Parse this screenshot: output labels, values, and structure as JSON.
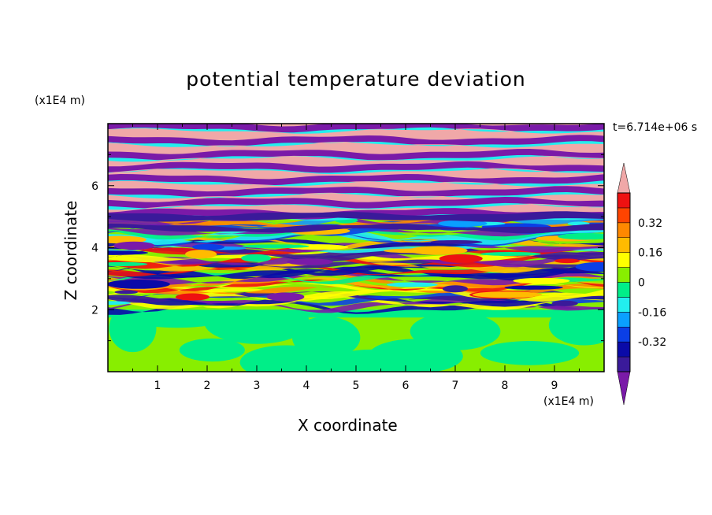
{
  "chart_data": {
    "type": "heatmap",
    "title": "potential temperature deviation",
    "xlabel": "X coordinate",
    "ylabel": "Z coordinate",
    "x_unit": "(x1E4 m)",
    "y_unit": "(x1E4 m)",
    "time_label": "t=6.714e+06 s",
    "xlim": [
      0,
      10
    ],
    "ylim": [
      0,
      8
    ],
    "x_ticks": [
      "1",
      "2",
      "3",
      "4",
      "5",
      "6",
      "7",
      "8",
      "9"
    ],
    "y_ticks": [
      "2",
      "4",
      "6"
    ],
    "colorbar": {
      "levels": [
        -0.48,
        -0.4,
        -0.32,
        -0.24,
        -0.16,
        -0.08,
        0,
        0.08,
        0.16,
        0.24,
        0.32,
        0.4,
        0.48
      ],
      "labels": [
        "0.32",
        "0.16",
        "0",
        "-0.16",
        "-0.32"
      ],
      "colors": [
        "#7a1aa8",
        "#3a1a9a",
        "#0a0aa8",
        "#0b3fe6",
        "#0aa0ff",
        "#22eeee",
        "#00ee88",
        "#88ee00",
        "#ffff00",
        "#ffbb00",
        "#ff8800",
        "#ff4400",
        "#ee1111",
        "#f0a8a8"
      ]
    },
    "regions": [
      {
        "z_range": [
          0,
          2
        ],
        "description": "near-uniform field, values about 0 to 0.08",
        "dominant_colors": [
          "#88ee00",
          "#00ee88"
        ]
      },
      {
        "z_range": [
          2,
          5
        ],
        "description": "banded mixing layer with values from about -0.32 to 0.32",
        "dominant_colors": [
          "#88ee00",
          "#ffff00",
          "#ff4400",
          "#22eeee",
          "#0a0aa8",
          "#3a1a9a"
        ]
      },
      {
        "z_range": [
          5,
          8
        ],
        "description": "alternating horizontal bands of extreme values beyond ±0.48",
        "dominant_colors": [
          "#f0a8a8",
          "#7a1aa8"
        ]
      }
    ]
  }
}
